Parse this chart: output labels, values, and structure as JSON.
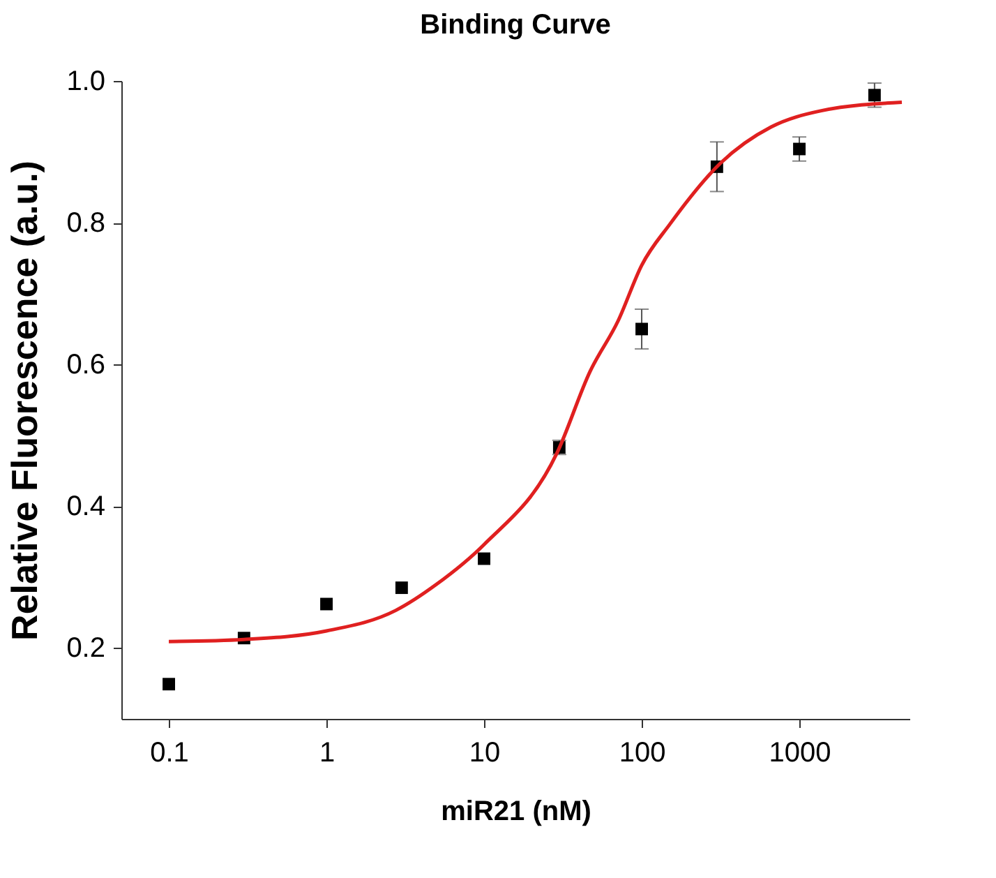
{
  "chart_data": {
    "type": "scatter",
    "title": "Binding Curve",
    "xlabel": "miR21 (nM)",
    "ylabel": "Relative Fluorescence (a.u.)",
    "log": "x",
    "grid": false,
    "xlim": [
      0.05,
      5000
    ],
    "xticks": [
      0.1,
      1,
      10,
      100,
      1000
    ],
    "ylim": [
      0.1,
      1.0
    ],
    "yticks": [
      0.2,
      0.4,
      0.6,
      0.8,
      {
        "value": 1.0,
        "label": "1.0"
      }
    ],
    "series": [
      {
        "color": "#000000",
        "marker": "square",
        "x": [
          0.1,
          0.3,
          1,
          3,
          10,
          30,
          100,
          300,
          1000,
          3000
        ],
        "values": [
          0.149,
          0.214,
          0.262,
          0.285,
          0.326,
          0.483,
          0.65,
          0.879,
          0.904,
          0.98
        ],
        "errors": [
          null,
          null,
          null,
          null,
          null,
          0.01,
          0.028,
          0.035,
          0.017,
          0.017
        ]
      },
      {
        "type": "line",
        "color": "#e02020",
        "line_style": "solid",
        "x": [
          0.1,
          0.3,
          1,
          2.75,
          5,
          10,
          29,
          47,
          71,
          100,
          151,
          316,
          661,
          1380,
          4470
        ],
        "values": [
          0.209,
          0.212,
          0.224,
          0.253,
          0.29,
          0.346,
          0.475,
          0.59,
          0.662,
          0.74,
          0.798,
          0.884,
          0.935,
          0.958,
          0.97
        ]
      }
    ]
  }
}
